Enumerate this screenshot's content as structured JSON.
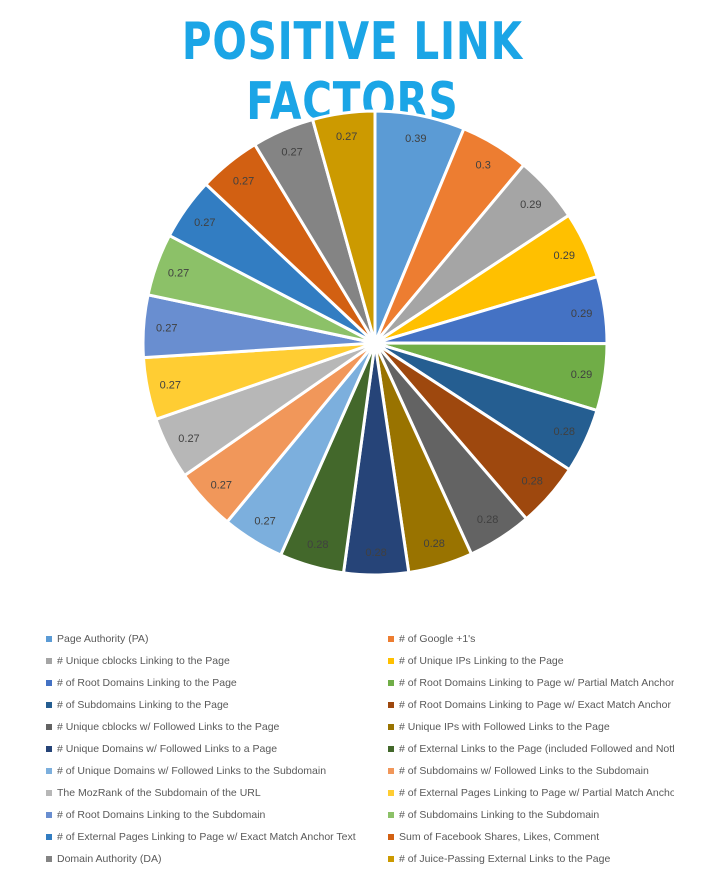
{
  "title": "POSITIVE LINK FACTORS",
  "chart_data": {
    "type": "pie",
    "slices": [
      {
        "name": "Page Authority (PA)",
        "value": 0.39,
        "color": "#5b9bd5"
      },
      {
        "name": "# of Google +1's",
        "value": 0.3,
        "color": "#ed7d31"
      },
      {
        "name": "# Unique cblocks Linking to the Page",
        "value": 0.29,
        "color": "#a5a5a5"
      },
      {
        "name": "# of Unique IPs Linking to the Page",
        "value": 0.29,
        "color": "#ffc000"
      },
      {
        "name": "# of Root Domains Linking to the Page",
        "value": 0.29,
        "color": "#4472c4"
      },
      {
        "name": "# of Root Domains Linking to Page w/ Partial Match Anchor",
        "value": 0.29,
        "color": "#70ad47"
      },
      {
        "name": "# of Subdomains Linking to the Page",
        "value": 0.28,
        "color": "#255e91"
      },
      {
        "name": "# of Root Domains Linking to Page w/ Exact Match Anchor",
        "value": 0.28,
        "color": "#9e480e"
      },
      {
        "name": "# Unique cblocks w/ Followed Links to the Page",
        "value": 0.28,
        "color": "#636363"
      },
      {
        "name": "# Unique IPs with Followed Links to the Page",
        "value": 0.28,
        "color": "#997300"
      },
      {
        "name": "# Unique Domains w/ Followed Links to a Page",
        "value": 0.28,
        "color": "#264478"
      },
      {
        "name": "# of External Links to the Page (included Followed and Notf",
        "value": 0.28,
        "color": "#43682b"
      },
      {
        "name": "# of Unique Domains w/ Followed Links to the Subdomain",
        "value": 0.27,
        "color": "#7cafdd"
      },
      {
        "name": "# of Subdomains w/ Followed Links to the Subdomain",
        "value": 0.27,
        "color": "#f1975a"
      },
      {
        "name": "The MozRank of the Subdomain of the URL",
        "value": 0.27,
        "color": "#b7b7b7"
      },
      {
        "name": "# of External Pages Linking to Page w/ Partial Match Ancho",
        "value": 0.27,
        "color": "#ffcd33"
      },
      {
        "name": "# of Root Domains Linking to the Subdomain",
        "value": 0.27,
        "color": "#698ed0"
      },
      {
        "name": "# of Subdomains Linking to the Subdomain",
        "value": 0.27,
        "color": "#8cc168"
      },
      {
        "name": "# of External Pages Linking to Page w/ Exact Match Anchor Text",
        "value": 0.27,
        "color": "#327dc2"
      },
      {
        "name": "Sum of Facebook Shares, Likes, Comment",
        "value": 0.27,
        "color": "#d26012"
      },
      {
        "name": "Domain Authority (DA)",
        "value": 0.27,
        "color": "#848484"
      },
      {
        "name": "# of Juice-Passing External Links to the Page",
        "value": 0.27,
        "color": "#cc9a00"
      }
    ],
    "legend_position": "bottom"
  }
}
